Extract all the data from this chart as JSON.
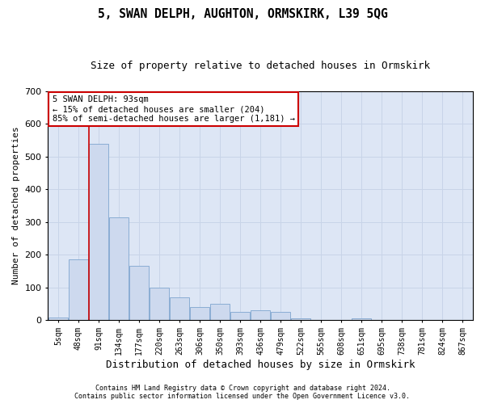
{
  "title": "5, SWAN DELPH, AUGHTON, ORMSKIRK, L39 5QG",
  "subtitle": "Size of property relative to detached houses in Ormskirk",
  "xlabel": "Distribution of detached houses by size in Ormskirk",
  "ylabel": "Number of detached properties",
  "footnote1": "Contains HM Land Registry data © Crown copyright and database right 2024.",
  "footnote2": "Contains public sector information licensed under the Open Government Licence v3.0.",
  "bar_labels": [
    "5sqm",
    "48sqm",
    "91sqm",
    "134sqm",
    "177sqm",
    "220sqm",
    "263sqm",
    "306sqm",
    "350sqm",
    "393sqm",
    "436sqm",
    "479sqm",
    "522sqm",
    "565sqm",
    "608sqm",
    "651sqm",
    "695sqm",
    "738sqm",
    "781sqm",
    "824sqm",
    "867sqm"
  ],
  "bar_values": [
    8,
    185,
    540,
    315,
    165,
    100,
    70,
    40,
    50,
    25,
    30,
    25,
    5,
    0,
    0,
    5,
    0,
    0,
    0,
    0,
    0
  ],
  "bar_color": "#cdd9ee",
  "bar_edgecolor": "#8aadd4",
  "vline_color": "#cc0000",
  "vline_x_index": 2,
  "annotation_text": "5 SWAN DELPH: 93sqm\n← 15% of detached houses are smaller (204)\n85% of semi-detached houses are larger (1,181) →",
  "annotation_box_facecolor": "#ffffff",
  "annotation_box_edgecolor": "#cc0000",
  "annotation_fontsize": 7.5,
  "ylim": [
    0,
    700
  ],
  "yticks": [
    0,
    100,
    200,
    300,
    400,
    500,
    600,
    700
  ],
  "grid_color": "#c8d4e8",
  "background_color": "#dde6f5",
  "title_fontsize": 10.5,
  "subtitle_fontsize": 9,
  "ylabel_fontsize": 8,
  "xlabel_fontsize": 9,
  "tick_fontsize": 7,
  "footnote_fontsize": 6
}
